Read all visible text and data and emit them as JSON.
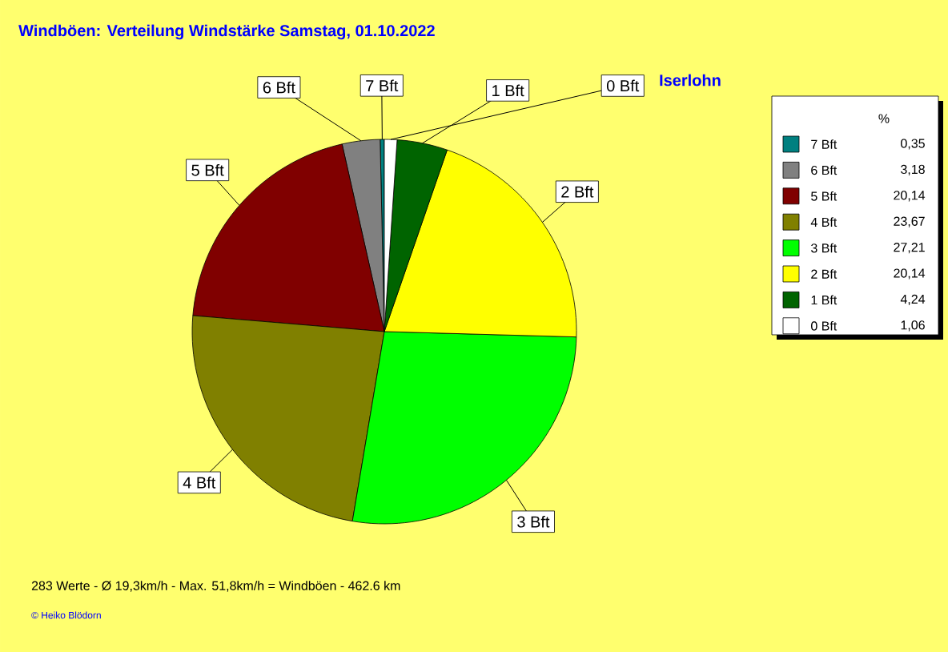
{
  "chart_data": {
    "type": "pie",
    "title": "Windböen: Verteilung Windstärke  Samstag, 01.10.2022",
    "subtitle": "Iserlohn",
    "categories": [
      "0 Bft",
      "1 Bft",
      "2 Bft",
      "3 Bft",
      "4 Bft",
      "5 Bft",
      "6 Bft",
      "7 Bft"
    ],
    "values": [
      1.06,
      4.24,
      20.14,
      27.21,
      23.67,
      20.14,
      3.18,
      0.35
    ],
    "value_labels": [
      "1,06",
      "4,24",
      "20,14",
      "27,21",
      "23,67",
      "20,14",
      "3,18",
      "0,35"
    ],
    "colors": [
      "#ffffff",
      "#006400",
      "#ffff00",
      "#00ff00",
      "#808000",
      "#800000",
      "#808080",
      "#008080"
    ],
    "legend": "top right",
    "legend_title": "%",
    "annotations": [
      "283 Werte   -   Ø 19,3km/h  -  Max. 51,8km/h = Windböen   -   462.6 km",
      "© Heiko Blödorn"
    ]
  }
}
